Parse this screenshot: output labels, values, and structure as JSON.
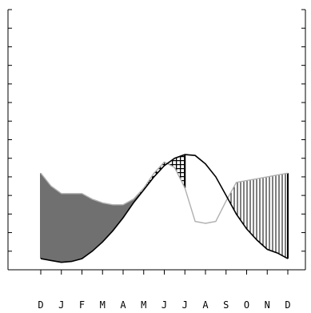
{
  "chart_data": {
    "type": "area",
    "title": "",
    "xlabel": "",
    "ylabel": "",
    "categories": [
      "D",
      "J",
      "F",
      "M",
      "A",
      "M",
      "J",
      "J",
      "A",
      "S",
      "O",
      "N",
      "D"
    ],
    "x_positions": [
      0,
      1,
      2,
      3,
      4,
      5,
      6,
      7,
      8,
      9,
      10,
      11,
      12
    ],
    "y_range": [
      0,
      14
    ],
    "y_tick_count": 14,
    "grid": false,
    "legend": "none",
    "series": [
      {
        "x": [
          0,
          0.5,
          1,
          1.5,
          2,
          2.5,
          3,
          3.5,
          4,
          4.5,
          5,
          5.5,
          6,
          6.5,
          7,
          7.5,
          8,
          8.5,
          9,
          9.5,
          10,
          10.5,
          11,
          11.5,
          12
        ],
        "y": [
          5.2,
          4.5,
          4.1,
          4.1,
          4.1,
          3.8,
          3.6,
          3.5,
          3.5,
          3.8,
          4.4,
          5.2,
          5.8,
          5.5,
          4.4,
          2.6,
          2.5,
          2.6,
          3.7,
          4.7,
          4.8,
          4.9,
          5.0,
          5.1,
          5.2
        ]
      },
      {
        "x": [
          0,
          0.5,
          1,
          1.5,
          2,
          2.5,
          3,
          3.5,
          4,
          4.5,
          5,
          5.5,
          6,
          6.5,
          7,
          7.5,
          8,
          8.5,
          9,
          9.5,
          10,
          10.5,
          11,
          11.5,
          12
        ],
        "y": [
          0.6,
          0.5,
          0.4,
          0.45,
          0.6,
          1.0,
          1.5,
          2.1,
          2.8,
          3.6,
          4.3,
          5.0,
          5.6,
          6.0,
          6.2,
          6.15,
          5.7,
          5.0,
          4.0,
          3.0,
          2.2,
          1.6,
          1.1,
          0.9,
          0.6
        ]
      }
    ],
    "colors": {
      "gray_fill": "#707070",
      "thin_line": "#b0b0b0",
      "curve": "#000000",
      "background": "#ffffff"
    }
  }
}
